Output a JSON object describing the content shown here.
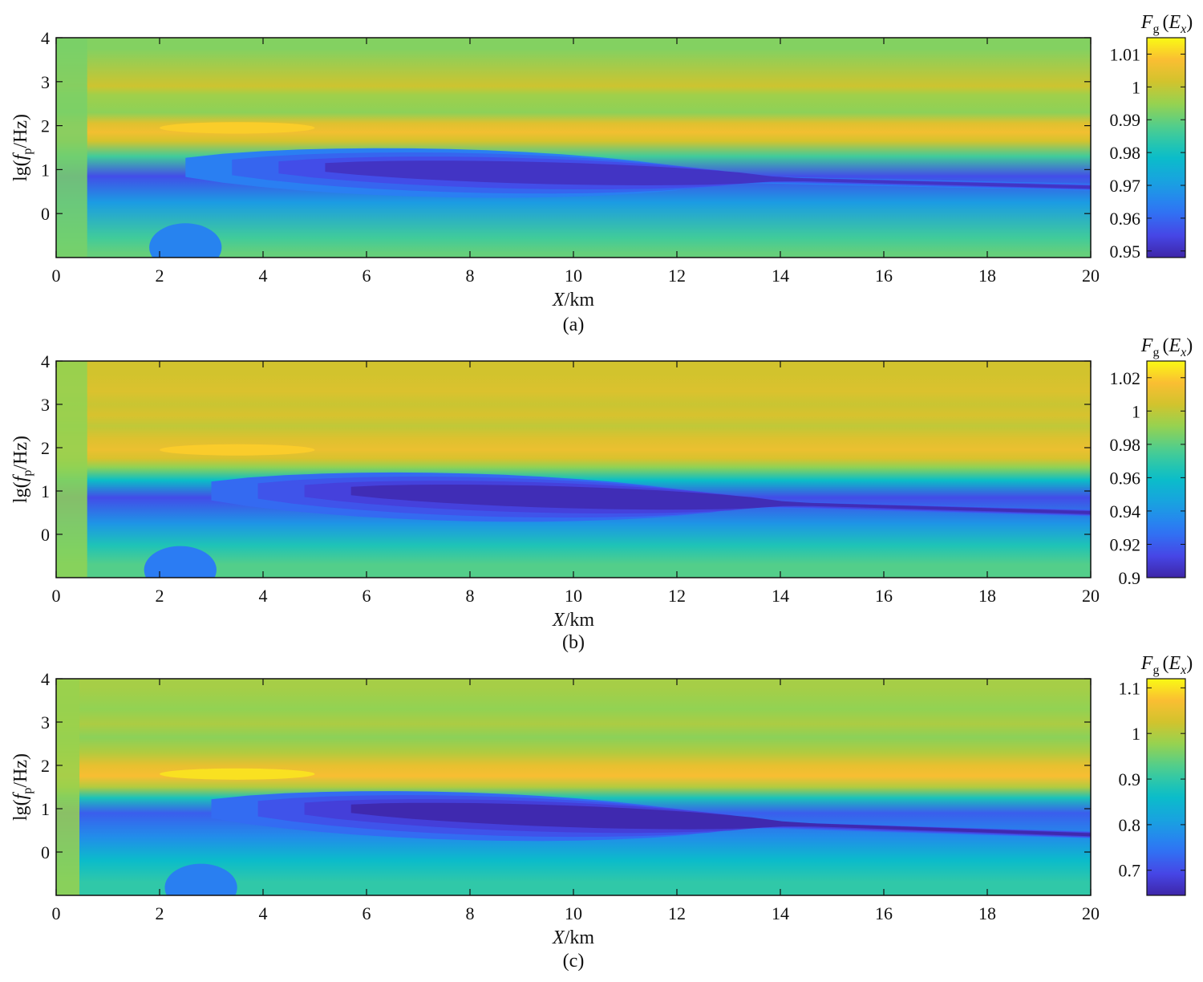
{
  "chart_data": [
    {
      "type": "heatmap",
      "panel_label": "(a)",
      "xlabel_var": "X",
      "xlabel_unit": "/km",
      "ylabel_prefix": "lg(",
      "ylabel_var": "f",
      "ylabel_sub": "p",
      "ylabel_suffix": "/Hz)",
      "colorbar_title_var": "F",
      "colorbar_title_sub": "g",
      "colorbar_title_arg": "(E",
      "colorbar_title_arg_sub": "x",
      "colorbar_title_close": ")",
      "xlim": [
        0,
        20
      ],
      "ylim": [
        -1,
        4
      ],
      "x_ticks": [
        0,
        2,
        4,
        6,
        8,
        10,
        12,
        14,
        16,
        18,
        20
      ],
      "y_ticks": [
        0,
        1,
        2,
        3,
        4
      ],
      "clim": [
        0.948,
        1.015
      ],
      "colorbar_ticks": [
        0.95,
        0.96,
        0.97,
        0.98,
        0.99,
        1,
        1.01
      ],
      "colorbar_tick_labels": [
        "0.95",
        "0.96",
        "0.97",
        "0.98",
        "0.99",
        "1",
        "1.01"
      ],
      "bands": [
        {
          "y": 3.75,
          "value": 0.993
        },
        {
          "y": 2.9,
          "value": 1.001
        },
        {
          "y": 2.7,
          "value": 0.996
        },
        {
          "y": 2.3,
          "value": 0.994
        },
        {
          "y": 2.05,
          "value": 1.004
        },
        {
          "y": 1.85,
          "value": 1.007
        },
        {
          "y": 1.65,
          "value": 1.002
        },
        {
          "y": 1.3,
          "value": 0.986
        },
        {
          "y": 0.85,
          "value": 0.956
        },
        {
          "y": 0.25,
          "value": 0.97
        },
        {
          "y": -0.55,
          "value": 0.986
        },
        {
          "y": -0.9,
          "value": 0.99
        }
      ],
      "features": [
        {
          "kind": "trough",
          "x_start": 2.5,
          "x_end": 20,
          "y_start": 1.05,
          "y_end": 0.6,
          "value": 0.951
        },
        {
          "kind": "peak",
          "x_start": 2,
          "x_end": 5,
          "y": 1.95,
          "value": 1.01
        },
        {
          "kind": "pocket",
          "x": 2.5,
          "y": -0.55,
          "value": 0.965
        },
        {
          "kind": "edge",
          "x_max": 0.6,
          "value": 0.992
        }
      ]
    },
    {
      "type": "heatmap",
      "panel_label": "(b)",
      "xlabel_var": "X",
      "xlabel_unit": "/km",
      "ylabel_prefix": "lg(",
      "ylabel_var": "f",
      "ylabel_sub": "p",
      "ylabel_suffix": "/Hz)",
      "colorbar_title_var": "F",
      "colorbar_title_sub": "g",
      "colorbar_title_arg": "(E",
      "colorbar_title_arg_sub": "x",
      "colorbar_title_close": ")",
      "xlim": [
        0,
        20
      ],
      "ylim": [
        -1,
        4
      ],
      "x_ticks": [
        0,
        2,
        4,
        6,
        8,
        10,
        12,
        14,
        16,
        18,
        20
      ],
      "y_ticks": [
        0,
        1,
        2,
        3,
        4
      ],
      "clim": [
        0.9,
        1.03
      ],
      "colorbar_ticks": [
        0.9,
        0.92,
        0.94,
        0.96,
        0.98,
        1,
        1.02
      ],
      "colorbar_tick_labels": [
        "0.9",
        "0.92",
        "0.94",
        "0.96",
        "0.98",
        "1",
        "1.02"
      ],
      "bands": [
        {
          "y": 3.7,
          "value": 1.004
        },
        {
          "y": 3.3,
          "value": 1.007
        },
        {
          "y": 3.0,
          "value": 1.002
        },
        {
          "y": 2.75,
          "value": 1.006
        },
        {
          "y": 2.5,
          "value": 1.0
        },
        {
          "y": 2.2,
          "value": 1.008
        },
        {
          "y": 1.95,
          "value": 1.012
        },
        {
          "y": 1.75,
          "value": 1.006
        },
        {
          "y": 1.55,
          "value": 0.99
        },
        {
          "y": 1.25,
          "value": 0.96
        },
        {
          "y": 0.85,
          "value": 0.915
        },
        {
          "y": 0.25,
          "value": 0.94
        },
        {
          "y": -0.25,
          "value": 0.965
        },
        {
          "y": -0.7,
          "value": 0.978
        }
      ],
      "features": [
        {
          "kind": "trough",
          "x_start": 3,
          "x_end": 20,
          "y_start": 1.0,
          "y_end": 0.5,
          "value": 0.903
        },
        {
          "kind": "peak",
          "x_start": 2,
          "x_end": 5,
          "y": 1.95,
          "value": 1.02
        },
        {
          "kind": "pocket",
          "x": 2.4,
          "y": -0.6,
          "value": 0.93
        },
        {
          "kind": "edge",
          "x_max": 0.6,
          "value": 0.99
        }
      ]
    },
    {
      "type": "heatmap",
      "panel_label": "(c)",
      "xlabel_var": "X",
      "xlabel_unit": "/km",
      "ylabel_prefix": "lg(",
      "ylabel_var": "f",
      "ylabel_sub": "p",
      "ylabel_suffix": "/Hz)",
      "colorbar_title_var": "F",
      "colorbar_title_sub": "g",
      "colorbar_title_arg": "(E",
      "colorbar_title_arg_sub": "x",
      "colorbar_title_close": ")",
      "xlim": [
        0,
        20
      ],
      "ylim": [
        -1,
        4
      ],
      "x_ticks": [
        0,
        2,
        4,
        6,
        8,
        10,
        12,
        14,
        16,
        18,
        20
      ],
      "y_ticks": [
        0,
        1,
        2,
        3,
        4
      ],
      "clim": [
        0.645,
        1.12
      ],
      "colorbar_ticks": [
        0.7,
        0.8,
        0.9,
        1,
        1.1
      ],
      "colorbar_tick_labels": [
        "0.7",
        "0.8",
        "0.9",
        "1",
        "1.1"
      ],
      "bands": [
        {
          "y": 3.8,
          "value": 0.99
        },
        {
          "y": 3.3,
          "value": 0.975
        },
        {
          "y": 2.95,
          "value": 0.995
        },
        {
          "y": 2.65,
          "value": 0.97
        },
        {
          "y": 2.3,
          "value": 1.0
        },
        {
          "y": 2.0,
          "value": 1.05
        },
        {
          "y": 1.75,
          "value": 1.07
        },
        {
          "y": 1.5,
          "value": 1.0
        },
        {
          "y": 1.25,
          "value": 0.88
        },
        {
          "y": 0.9,
          "value": 0.72
        },
        {
          "y": 0.35,
          "value": 0.78
        },
        {
          "y": -0.2,
          "value": 0.86
        },
        {
          "y": -0.7,
          "value": 0.9
        }
      ],
      "features": [
        {
          "kind": "trough",
          "x_start": 3,
          "x_end": 20,
          "y_start": 1.0,
          "y_end": 0.4,
          "value": 0.65
        },
        {
          "kind": "peak",
          "x_start": 2,
          "x_end": 5,
          "y": 1.8,
          "value": 1.1
        },
        {
          "kind": "pocket",
          "x": 2.8,
          "y": -0.6,
          "value": 0.76
        },
        {
          "kind": "edge",
          "x_max": 0.45,
          "value": 0.98
        }
      ]
    }
  ]
}
